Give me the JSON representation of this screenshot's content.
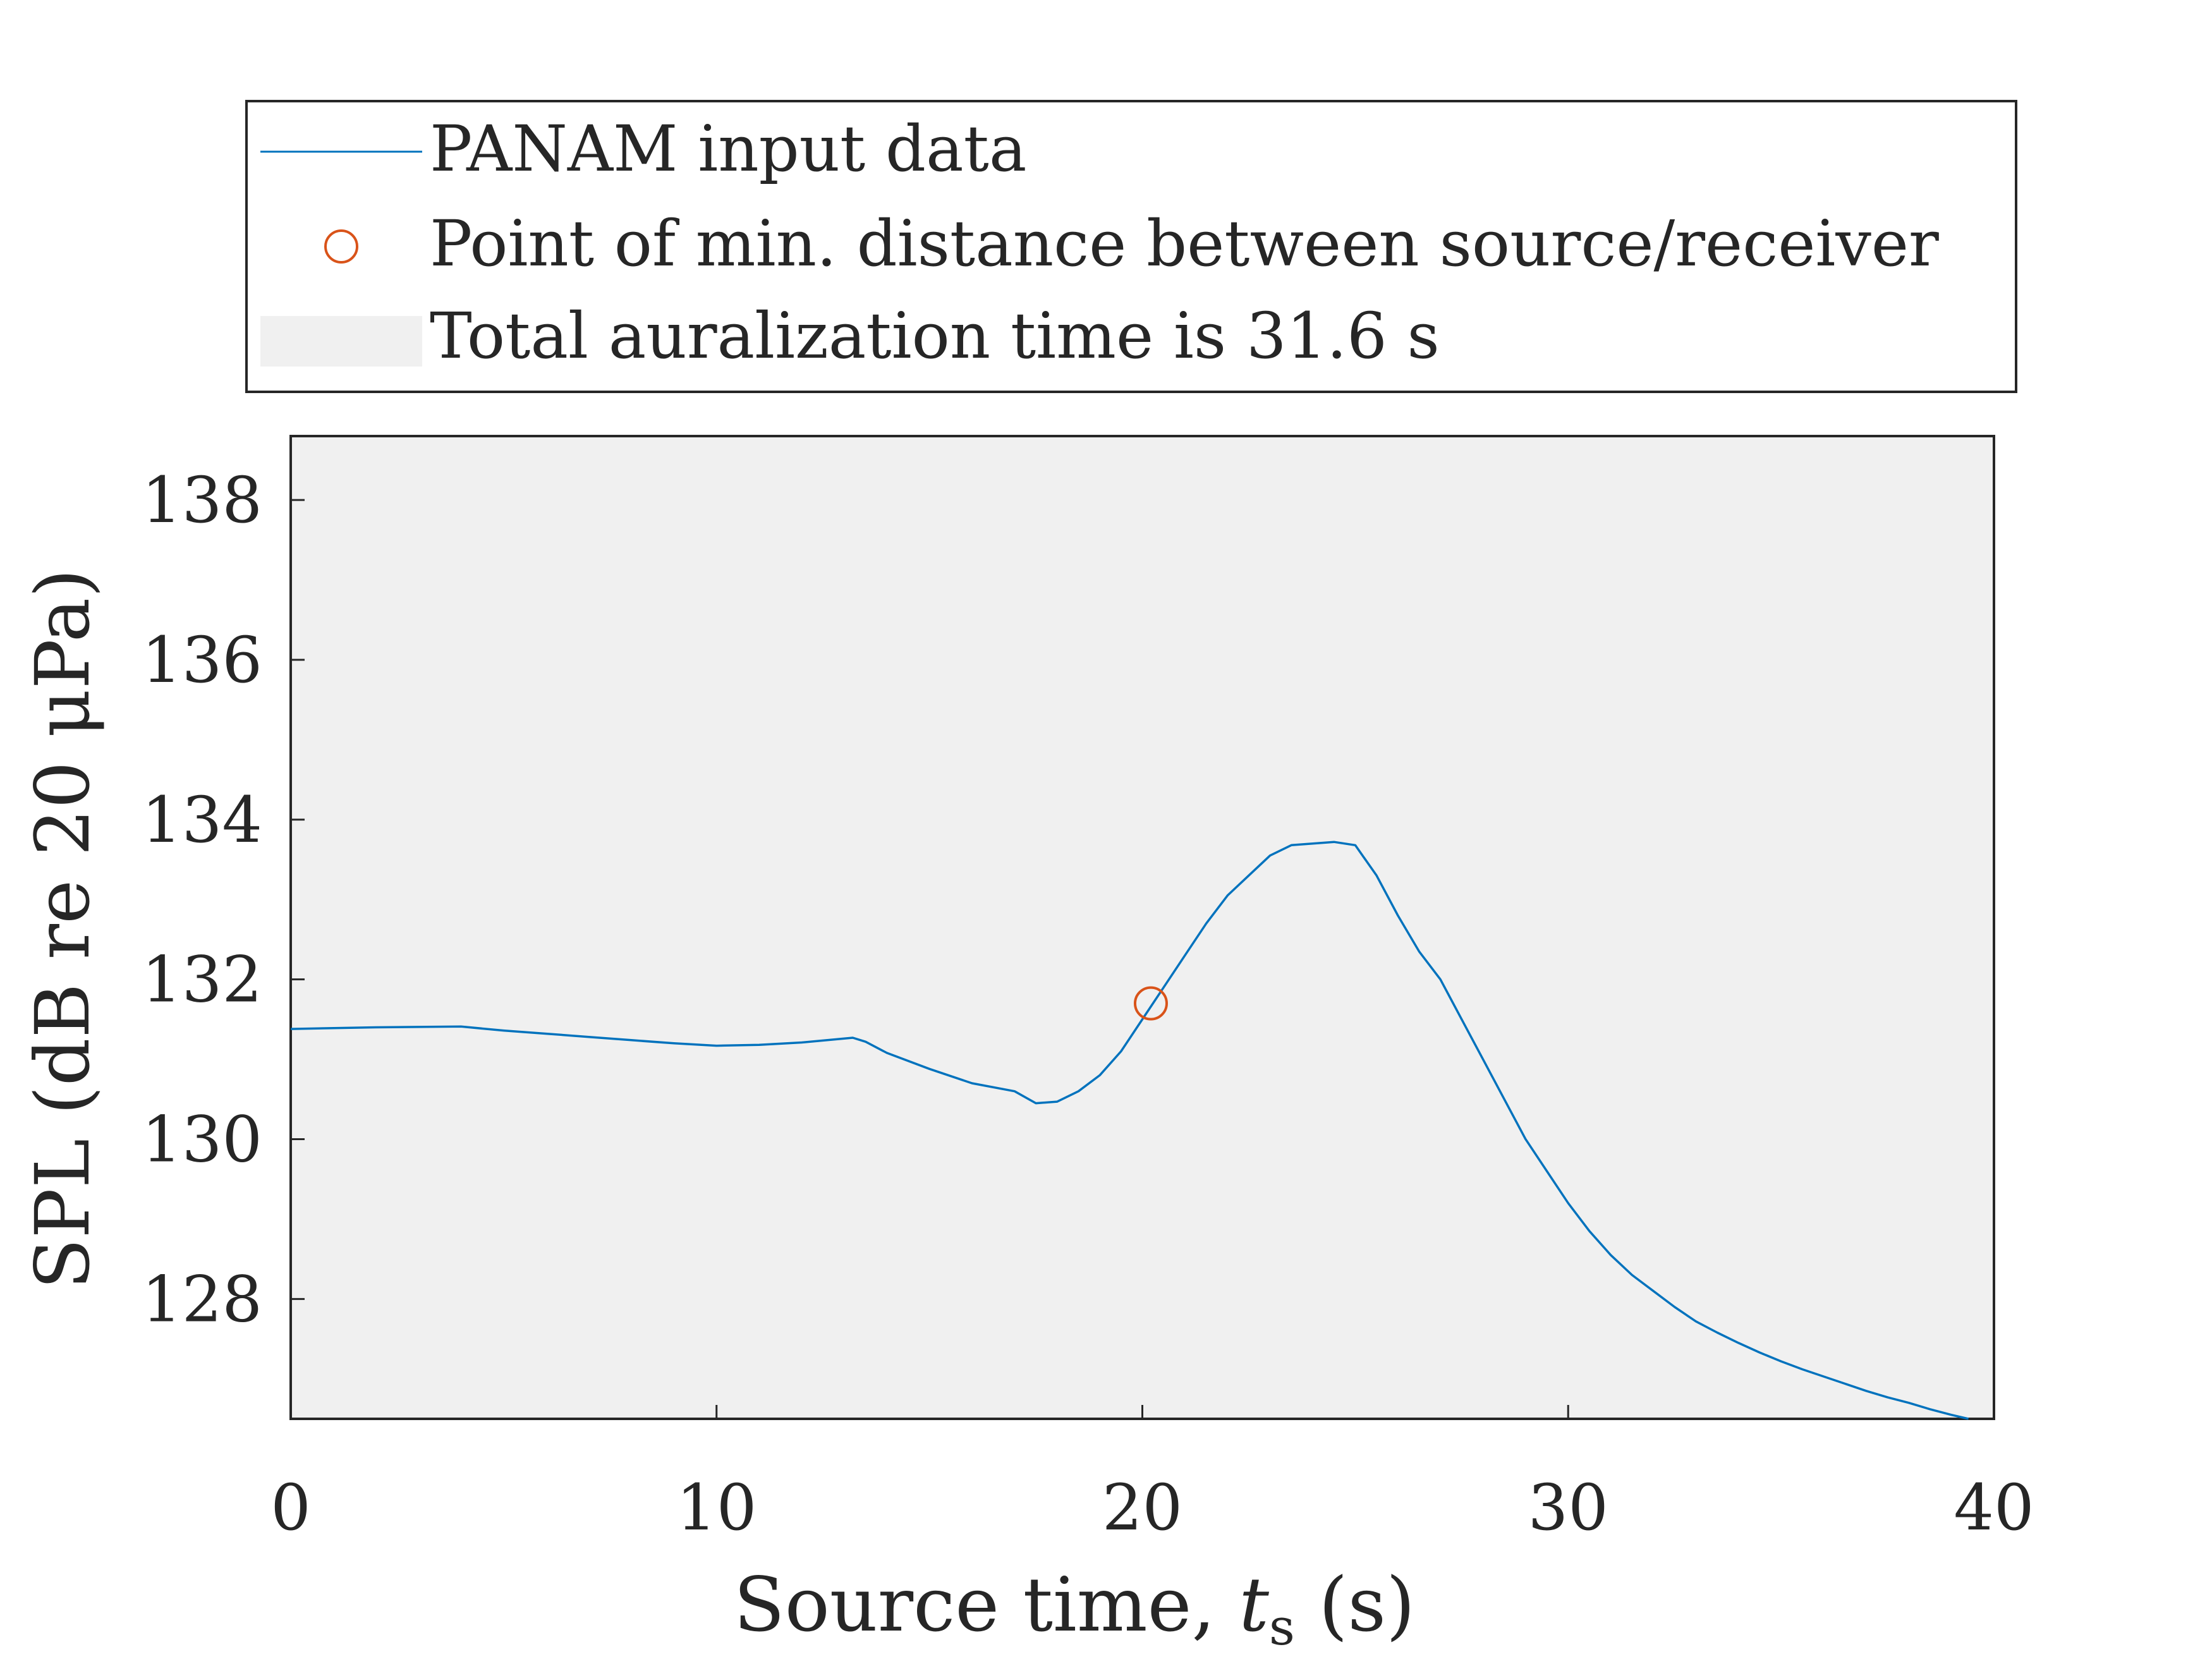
{
  "chart_data": {
    "type": "line",
    "title": "",
    "xlabel": "Source time, ",
    "xlabel_symbol": "t",
    "xlabel_subscript": "s",
    "xlabel_unit": " (s)",
    "ylabel": "SPL (dB re 20 μPa)",
    "xlim": [
      0,
      40
    ],
    "ylim": [
      126.5,
      138.8
    ],
    "xticks": [
      0,
      10,
      20,
      30,
      40
    ],
    "xtick_labels": [
      "0",
      "10",
      "20",
      "30",
      "40"
    ],
    "yticks": [
      128,
      130,
      132,
      134,
      136,
      138
    ],
    "ytick_labels": [
      "128",
      "130",
      "132",
      "134",
      "136",
      "138"
    ],
    "grid": false,
    "background_shade": {
      "x_range": [
        0,
        40
      ],
      "label": "Total auralization time is 31.6 s",
      "color": "#f0f0f0"
    },
    "legend_position": "above plot",
    "legend": [
      {
        "label": "PANAM input data",
        "marker": "line",
        "color": "#0072bd"
      },
      {
        "label": "Point of min. distance between source/receiver",
        "marker": "circle",
        "color": "#d95319"
      },
      {
        "label": "Total auralization time is 31.6 s",
        "marker": "patch",
        "color": "#f0f0f0"
      }
    ],
    "series": [
      {
        "name": "PANAM input data",
        "color": "#0072bd",
        "x": [
          0,
          2,
          4,
          5,
          6,
          7,
          8,
          9,
          10,
          11,
          12,
          13.2,
          13.5,
          14,
          15,
          16,
          17,
          17.5,
          18,
          18.5,
          19,
          19.5,
          20,
          20.5,
          21,
          21.5,
          22,
          22.5,
          23,
          23.5,
          24,
          24.5,
          25,
          25.5,
          26,
          26.5,
          27,
          27.5,
          28,
          28.5,
          29,
          29.5,
          30,
          30.5,
          31,
          31.5,
          32,
          32.5,
          33,
          33.5,
          34,
          34.5,
          35,
          35.5,
          36,
          36.5,
          37,
          37.5,
          38,
          38.5,
          39,
          39.4
        ],
        "y": [
          131.38,
          131.4,
          131.41,
          131.36,
          131.32,
          131.28,
          131.24,
          131.2,
          131.17,
          131.18,
          131.21,
          131.27,
          131.22,
          131.08,
          130.88,
          130.7,
          130.6,
          130.45,
          130.47,
          130.6,
          130.8,
          131.1,
          131.5,
          131.9,
          132.3,
          132.7,
          133.05,
          133.3,
          133.55,
          133.68,
          133.7,
          133.72,
          133.68,
          133.3,
          132.8,
          132.35,
          132.0,
          131.5,
          131.0,
          130.5,
          130.0,
          129.6,
          129.2,
          128.85,
          128.55,
          128.3,
          128.1,
          127.9,
          127.72,
          127.58,
          127.45,
          127.33,
          127.22,
          127.12,
          127.03,
          126.94,
          126.85,
          126.77,
          126.7,
          126.62,
          126.55,
          126.5
        ]
      }
    ],
    "markers": [
      {
        "name": "Point of min. distance between source/receiver",
        "x": 20.2,
        "y": 131.7,
        "color": "#d95319"
      }
    ]
  }
}
